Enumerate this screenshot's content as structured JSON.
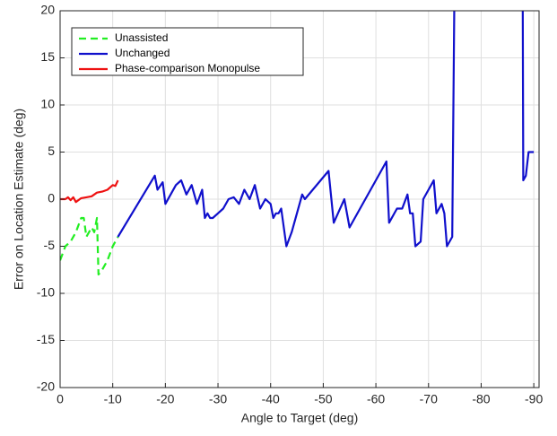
{
  "chart_data": {
    "type": "line",
    "xlabel": "Angle to Target (deg)",
    "ylabel": "Error on Location Estimate (deg)",
    "xlim": [
      0,
      -91
    ],
    "ylim": [
      -20,
      20
    ],
    "xticks": [
      0,
      -10,
      -20,
      -30,
      -40,
      -50,
      -60,
      -70,
      -80,
      -90
    ],
    "yticks": [
      -20,
      -15,
      -10,
      -5,
      0,
      5,
      10,
      15,
      20
    ],
    "grid": true,
    "legend": "upper left",
    "series": [
      {
        "name": "Unassisted",
        "color": "#22ee22",
        "style": "dashed",
        "x": [
          0,
          -1,
          -2,
          -3,
          -4,
          -4.5,
          -5,
          -6,
          -6.5,
          -7,
          -7.3,
          -8,
          -9,
          -10,
          -11
        ],
        "values": [
          -6.5,
          -5,
          -4.5,
          -3.5,
          -2,
          -2,
          -4,
          -3,
          -3.5,
          -2,
          -8,
          -7.5,
          -6.5,
          -5,
          -4
        ]
      },
      {
        "name": "Unchanged",
        "color": "#1010cc",
        "style": "solid",
        "x": [
          -11,
          -18,
          -18.5,
          -19.5,
          -20,
          -22,
          -23,
          -24,
          -25,
          -26,
          -27,
          -27.5,
          -28,
          -28.5,
          -29,
          -30,
          -31,
          -32,
          -33,
          -34,
          -35,
          -36,
          -37,
          -38,
          -39,
          -40,
          -40.5,
          -41,
          -41.5,
          -42,
          -43,
          -44,
          -46,
          -46.5,
          -51,
          -52,
          -54,
          -55,
          -62,
          -62.5,
          -64,
          -65,
          -66,
          -66.5,
          -67,
          -67.5,
          -68.5,
          -69,
          -71,
          -71.5,
          -72.5,
          -73,
          -73.5,
          -74.5,
          -75.2,
          -87.8,
          -88,
          -88.5,
          -89,
          -90
        ],
        "values": [
          -4,
          2.5,
          1,
          1.8,
          -0.5,
          1.5,
          2,
          0.5,
          1.5,
          -0.5,
          1,
          -2,
          -1.5,
          -2,
          -2,
          -1.5,
          -1,
          0,
          0.2,
          -0.5,
          1,
          0,
          1.5,
          -1,
          0,
          -0.5,
          -2,
          -1.5,
          -1.5,
          -1,
          -5,
          -3.5,
          0.5,
          0,
          3,
          -2.5,
          0,
          -3,
          4,
          -2.5,
          -1,
          -1,
          0.5,
          -1.5,
          -1.5,
          -5,
          -4.5,
          0,
          2,
          -1.5,
          -0.5,
          -1.5,
          -5,
          -4,
          40,
          40,
          2,
          2.5,
          5,
          5
        ]
      },
      {
        "name": "Phase-comparison Monopulse",
        "color": "#ee1111",
        "style": "solid",
        "x": [
          0,
          -1,
          -1.5,
          -2,
          -2.5,
          -3,
          -4,
          -5,
          -6,
          -7,
          -8,
          -9,
          -10,
          -10.5,
          -11
        ],
        "values": [
          0,
          0,
          0.2,
          -0.1,
          0.2,
          -0.3,
          0.1,
          0.2,
          0.3,
          0.7,
          0.8,
          1,
          1.5,
          1.4,
          2
        ]
      }
    ]
  }
}
